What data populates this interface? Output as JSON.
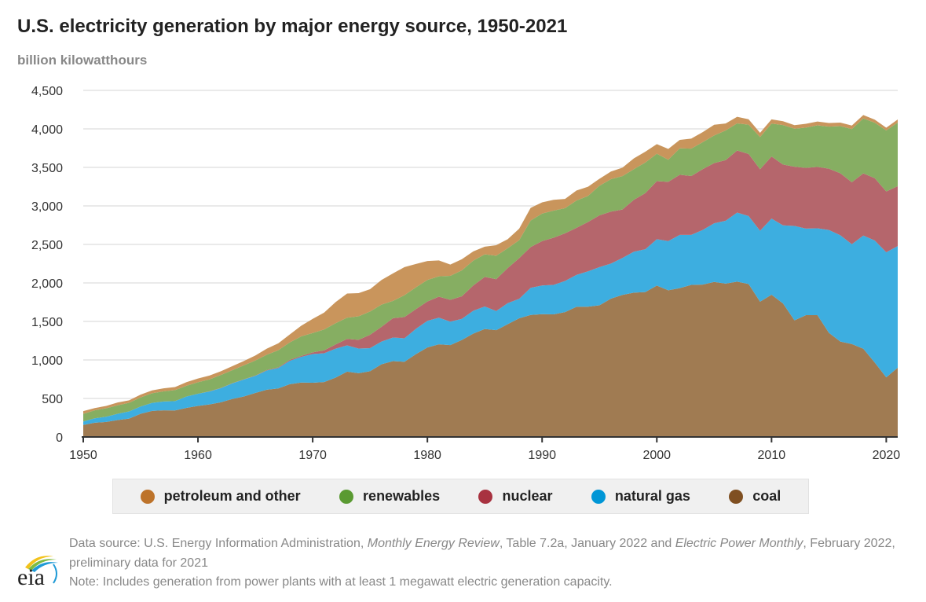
{
  "chart_data": {
    "type": "area",
    "stacked": true,
    "title": "U.S. electricity generation by major energy source, 1950-2021",
    "ylabel": "billion kilowatthours",
    "xlim": [
      1950,
      2021
    ],
    "ylim": [
      0,
      4500
    ],
    "yticks": [
      "0",
      "500",
      "1,000",
      "1,500",
      "2,000",
      "2,500",
      "3,000",
      "3,500",
      "4,000",
      "4,500"
    ],
    "xticks": [
      "1950",
      "1960",
      "1970",
      "1980",
      "1990",
      "2000",
      "2010",
      "2020"
    ],
    "grid": true,
    "legend_position": "bottom",
    "x": [
      1950,
      1951,
      1952,
      1953,
      1954,
      1955,
      1956,
      1957,
      1958,
      1959,
      1960,
      1961,
      1962,
      1963,
      1964,
      1965,
      1966,
      1967,
      1968,
      1969,
      1970,
      1971,
      1972,
      1973,
      1974,
      1975,
      1976,
      1977,
      1978,
      1979,
      1980,
      1981,
      1982,
      1983,
      1984,
      1985,
      1986,
      1987,
      1988,
      1989,
      1990,
      1991,
      1992,
      1993,
      1994,
      1995,
      1996,
      1997,
      1998,
      1999,
      2000,
      2001,
      2002,
      2003,
      2004,
      2005,
      2006,
      2007,
      2008,
      2009,
      2010,
      2011,
      2012,
      2013,
      2014,
      2015,
      2016,
      2017,
      2018,
      2019,
      2020,
      2021
    ],
    "series": [
      {
        "name": "coal",
        "color": "#a07b52",
        "legend_color": "#7f4f21",
        "values": [
          155,
          185,
          195,
          219,
          239,
          301,
          338,
          346,
          344,
          378,
          403,
          422,
          450,
          494,
          526,
          571,
          613,
          630,
          685,
          706,
          704,
          713,
          771,
          848,
          828,
          853,
          944,
          985,
          976,
          1075,
          1162,
          1203,
          1192,
          1259,
          1342,
          1402,
          1386,
          1464,
          1541,
          1584,
          1594,
          1592,
          1621,
          1690,
          1691,
          1709,
          1796,
          1845,
          1874,
          1881,
          1966,
          1904,
          1933,
          1974,
          1978,
          2013,
          1991,
          2016,
          1986,
          1756,
          1847,
          1733,
          1514,
          1581,
          1582,
          1352,
          1239,
          1206,
          1146,
          965,
          774,
          899
        ]
      },
      {
        "name": "natural gas",
        "color": "#3daee0",
        "legend_color": "#0096d6",
        "values": [
          45,
          57,
          68,
          82,
          92,
          95,
          104,
          114,
          121,
          147,
          158,
          169,
          184,
          202,
          220,
          222,
          251,
          265,
          304,
          333,
          373,
          374,
          376,
          341,
          320,
          300,
          295,
          306,
          305,
          329,
          346,
          346,
          305,
          274,
          297,
          292,
          249,
          273,
          253,
          352,
          373,
          382,
          404,
          415,
          460,
          496,
          455,
          479,
          532,
          557,
          601,
          639,
          691,
          650,
          710,
          761,
          816,
          897,
          883,
          921,
          988,
          1014,
          1226,
          1124,
          1127,
          1335,
          1379,
          1297,
          1469,
          1586,
          1624,
          1579
        ]
      },
      {
        "name": "nuclear",
        "color": "#b5666c",
        "legend_color": "#a83240",
        "values": [
          0,
          0,
          0,
          0,
          0,
          0,
          0,
          0,
          0,
          0,
          0.5,
          1.7,
          2.3,
          3.2,
          3.3,
          3.7,
          5.5,
          7.7,
          12.5,
          13.9,
          21.8,
          38.1,
          54.1,
          83.5,
          114,
          173,
          191,
          251,
          276,
          255,
          251,
          273,
          283,
          294,
          328,
          384,
          414,
          455,
          527,
          529,
          577,
          613,
          619,
          610,
          640,
          673,
          675,
          629,
          673,
          728,
          754,
          769,
          780,
          764,
          789,
          782,
          787,
          806,
          806,
          799,
          807,
          790,
          769,
          789,
          797,
          797,
          806,
          805,
          807,
          809,
          790,
          778
        ]
      },
      {
        "name": "renewables",
        "color": "#86ae62",
        "legend_color": "#5a9a32",
        "values": [
          100,
          104,
          110,
          110,
          113,
          117,
          126,
          132,
          143,
          140,
          149,
          155,
          169,
          168,
          180,
          196,
          198,
          224,
          225,
          253,
          251,
          270,
          276,
          276,
          304,
          303,
          288,
          224,
          283,
          283,
          279,
          264,
          312,
          336,
          322,
          293,
          304,
          258,
          234,
          345,
          357,
          352,
          327,
          355,
          338,
          384,
          421,
          433,
          398,
          398,
          356,
          288,
          343,
          356,
          351,
          358,
          386,
          353,
          380,
          418,
          427,
          513,
          494,
          522,
          540,
          545,
          612,
          690,
          713,
          720,
          792,
          826
        ]
      },
      {
        "name": "petroleum and other",
        "color": "#c9955c",
        "legend_color": "#bd732a",
        "values": [
          35,
          29,
          30,
          37,
          32,
          37,
          37,
          40,
          40,
          47,
          48,
          49,
          48,
          52,
          57,
          65,
          79,
          89,
          104,
          138,
          184,
          220,
          274,
          314,
          301,
          289,
          320,
          358,
          365,
          304,
          246,
          206,
          147,
          144,
          120,
          100,
          137,
          118,
          149,
          165,
          145,
          140,
          120,
          130,
          120,
          90,
          100,
          110,
          140,
          140,
          125,
          140,
          110,
          130,
          130,
          140,
          90,
          85,
          70,
          55,
          55,
          50,
          45,
          50,
          50,
          48,
          45,
          45,
          45,
          40,
          35,
          40
        ]
      }
    ]
  },
  "legend_order": [
    "petroleum and other",
    "renewables",
    "nuclear",
    "natural gas",
    "coal"
  ],
  "footer": {
    "source_prefix": "Data source: U.S. Energy Information Administration, ",
    "source_italic1": "Monthly Energy Review",
    "source_mid": ", Table 7.2a, January 2022 and ",
    "source_italic2": "Electric Power Monthly",
    "source_suffix": ", February 2022, preliminary data for 2021",
    "note": "Note: Includes generation from power plants with at least 1 megawatt electric generation capacity."
  },
  "logo": {
    "text": "eia"
  }
}
